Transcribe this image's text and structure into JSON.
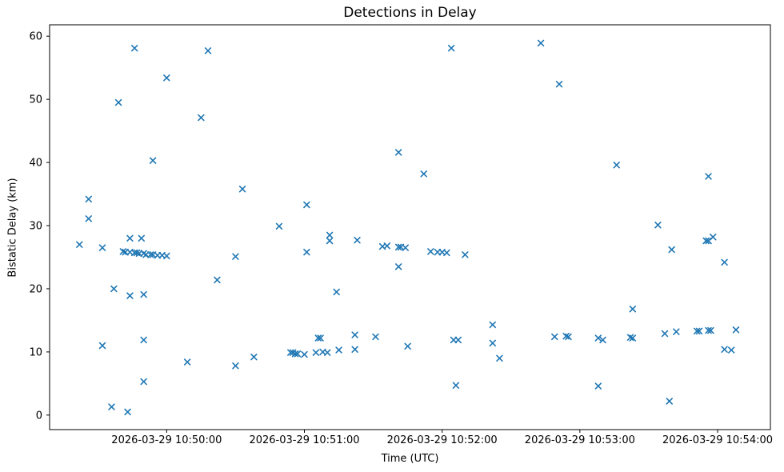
{
  "figure": {
    "title": "Detections in Delay",
    "xlabel": "Time (UTC)",
    "ylabel": "Bistatic Delay (km)"
  },
  "chart_data": {
    "type": "scatter",
    "title": "Detections in Delay",
    "xlabel": "Time (UTC)",
    "ylabel": "Bistatic Delay (km)",
    "date": "2026-03-29",
    "marker": "x",
    "marker_color": "#1f77b4",
    "axis_color": "#000000",
    "background_color": "#ffffff",
    "grid": false,
    "legend_position": "none",
    "x_axis": {
      "tick_labels": [
        "2026-03-29 10:50:00",
        "2026-03-29 10:51:00",
        "2026-03-29 10:52:00",
        "2026-03-29 10:53:00",
        "2026-03-29 10:54:00"
      ],
      "tick_times": [
        "10:50:00",
        "10:51:00",
        "10:52:00",
        "10:53:00",
        "10:54:00"
      ],
      "range_times": [
        "10:49:09",
        "10:54:23"
      ]
    },
    "y_axis": {
      "tick_labels": [
        "0",
        "10",
        "20",
        "30",
        "40",
        "50",
        "60"
      ],
      "tick_values": [
        0,
        10,
        20,
        30,
        40,
        50,
        60
      ],
      "range": [
        -2.3,
        61.8
      ]
    },
    "points": [
      [
        "10:49:22",
        27.0
      ],
      [
        "10:49:26",
        34.2
      ],
      [
        "10:49:26",
        31.1
      ],
      [
        "10:49:32",
        26.5
      ],
      [
        "10:49:32",
        11.0
      ],
      [
        "10:49:36",
        1.3
      ],
      [
        "10:49:37",
        20.0
      ],
      [
        "10:49:39",
        49.5
      ],
      [
        "10:49:41",
        25.9
      ],
      [
        "10:49:42",
        25.8
      ],
      [
        "10:49:43",
        0.5
      ],
      [
        "10:49:44",
        28.0
      ],
      [
        "10:49:44",
        25.8
      ],
      [
        "10:49:44",
        18.9
      ],
      [
        "10:49:46",
        25.7
      ],
      [
        "10:49:46",
        58.1
      ],
      [
        "10:49:47",
        25.7
      ],
      [
        "10:49:48",
        25.6
      ],
      [
        "10:49:49",
        28.0
      ],
      [
        "10:49:50",
        25.6
      ],
      [
        "10:49:50",
        19.1
      ],
      [
        "10:49:50",
        11.9
      ],
      [
        "10:49:50",
        5.3
      ],
      [
        "10:49:51",
        25.4
      ],
      [
        "10:49:53",
        25.4
      ],
      [
        "10:49:54",
        40.3
      ],
      [
        "10:49:54",
        25.4
      ],
      [
        "10:49:56",
        25.3
      ],
      [
        "10:49:58",
        25.3
      ],
      [
        "10:50:00",
        25.2
      ],
      [
        "10:50:00",
        53.4
      ],
      [
        "10:50:09",
        8.4
      ],
      [
        "10:50:15",
        47.1
      ],
      [
        "10:50:18",
        57.7
      ],
      [
        "10:50:22",
        21.4
      ],
      [
        "10:50:30",
        25.1
      ],
      [
        "10:50:30",
        7.8
      ],
      [
        "10:50:33",
        35.8
      ],
      [
        "10:50:38",
        9.2
      ],
      [
        "10:50:49",
        29.9
      ],
      [
        "10:50:54",
        9.9
      ],
      [
        "10:50:55",
        9.9
      ],
      [
        "10:50:56",
        9.7
      ],
      [
        "10:50:57",
        9.7
      ],
      [
        "10:51:00",
        9.6
      ],
      [
        "10:51:01",
        33.3
      ],
      [
        "10:51:01",
        25.8
      ],
      [
        "10:51:05",
        9.9
      ],
      [
        "10:51:06",
        12.2
      ],
      [
        "10:51:07",
        12.2
      ],
      [
        "10:51:08",
        10.0
      ],
      [
        "10:51:10",
        9.9
      ],
      [
        "10:51:11",
        28.5
      ],
      [
        "10:51:11",
        27.6
      ],
      [
        "10:51:14",
        19.5
      ],
      [
        "10:51:15",
        10.3
      ],
      [
        "10:51:22",
        12.7
      ],
      [
        "10:51:22",
        10.4
      ],
      [
        "10:51:23",
        27.7
      ],
      [
        "10:51:31",
        12.4
      ],
      [
        "10:51:34",
        26.7
      ],
      [
        "10:51:36",
        26.8
      ],
      [
        "10:51:41",
        26.6
      ],
      [
        "10:51:41",
        41.6
      ],
      [
        "10:51:41",
        23.5
      ],
      [
        "10:51:42",
        26.6
      ],
      [
        "10:51:44",
        26.5
      ],
      [
        "10:51:45",
        10.9
      ],
      [
        "10:51:52",
        38.2
      ],
      [
        "10:51:55",
        25.9
      ],
      [
        "10:51:58",
        25.8
      ],
      [
        "10:52:00",
        25.8
      ],
      [
        "10:52:02",
        25.7
      ],
      [
        "10:52:04",
        58.1
      ],
      [
        "10:52:05",
        11.9
      ],
      [
        "10:52:06",
        4.7
      ],
      [
        "10:52:07",
        11.9
      ],
      [
        "10:52:10",
        25.4
      ],
      [
        "10:52:22",
        14.3
      ],
      [
        "10:52:22",
        11.4
      ],
      [
        "10:52:25",
        9.0
      ],
      [
        "10:52:43",
        58.9
      ],
      [
        "10:52:49",
        12.4
      ],
      [
        "10:52:51",
        52.4
      ],
      [
        "10:52:54",
        12.5
      ],
      [
        "10:52:55",
        12.4
      ],
      [
        "10:53:08",
        12.2
      ],
      [
        "10:53:08",
        4.6
      ],
      [
        "10:53:10",
        11.9
      ],
      [
        "10:53:16",
        39.6
      ],
      [
        "10:53:22",
        12.3
      ],
      [
        "10:53:23",
        12.2
      ],
      [
        "10:53:23",
        16.8
      ],
      [
        "10:53:34",
        30.1
      ],
      [
        "10:53:37",
        12.9
      ],
      [
        "10:53:39",
        2.2
      ],
      [
        "10:53:40",
        26.2
      ],
      [
        "10:53:42",
        13.2
      ],
      [
        "10:53:51",
        13.3
      ],
      [
        "10:53:52",
        13.3
      ],
      [
        "10:53:55",
        27.6
      ],
      [
        "10:53:56",
        37.8
      ],
      [
        "10:53:56",
        27.6
      ],
      [
        "10:53:56",
        13.4
      ],
      [
        "10:53:57",
        13.4
      ],
      [
        "10:53:58",
        28.2
      ],
      [
        "10:54:03",
        24.2
      ],
      [
        "10:54:03",
        10.4
      ],
      [
        "10:54:06",
        10.3
      ],
      [
        "10:54:08",
        13.5
      ]
    ]
  }
}
